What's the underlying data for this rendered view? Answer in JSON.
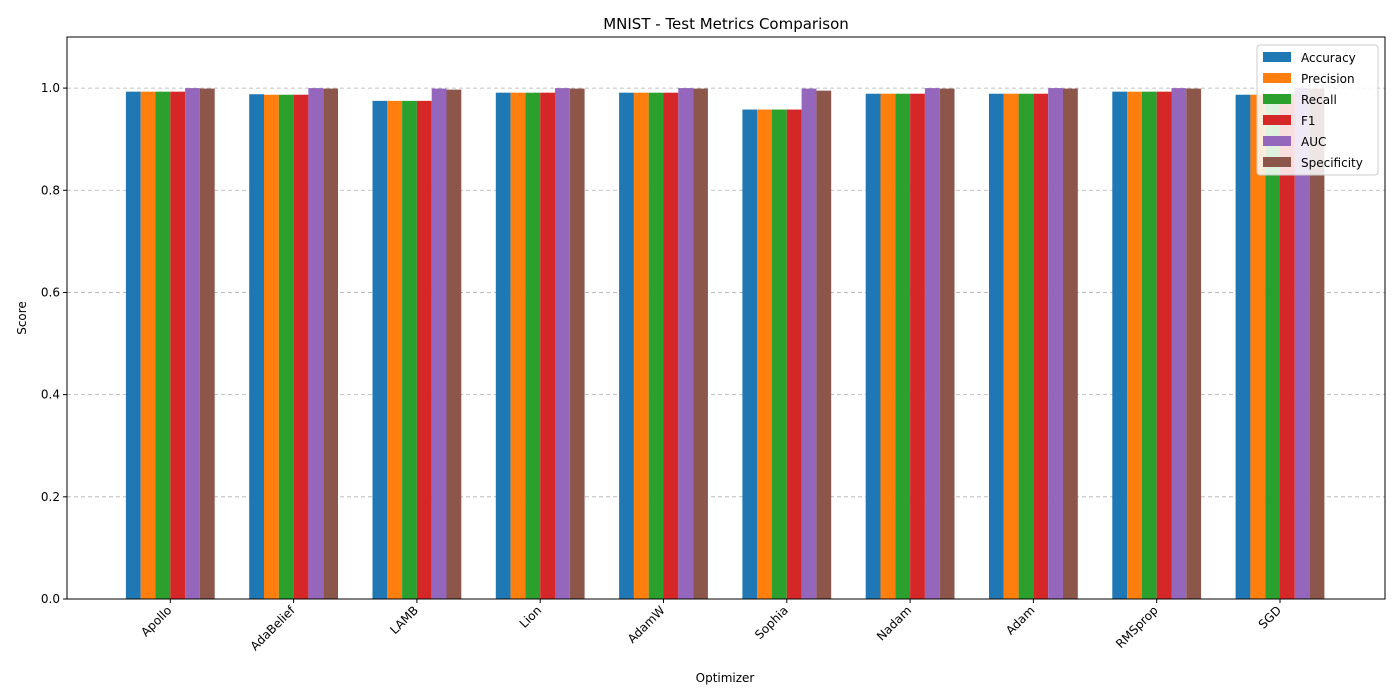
{
  "chart_data": {
    "type": "bar",
    "title": "MNIST - Test Metrics Comparison",
    "xlabel": "Optimizer",
    "ylabel": "Score",
    "ylim": [
      0,
      1.1
    ],
    "yticks": [
      "0.0",
      "0.2",
      "0.4",
      "0.6",
      "0.8",
      "1.0"
    ],
    "grid": "y-dashed",
    "legend_position": "top-right",
    "categories": [
      "Apollo",
      "AdaBelief",
      "LAMB",
      "Lion",
      "AdamW",
      "Sophia",
      "Nadam",
      "Adam",
      "RMSprop",
      "SGD"
    ],
    "series": [
      {
        "name": "Accuracy",
        "color": "#1f77b4",
        "values": [
          0.993,
          0.988,
          0.975,
          0.991,
          0.991,
          0.958,
          0.989,
          0.989,
          0.993,
          0.987
        ]
      },
      {
        "name": "Precision",
        "color": "#ff7f0e",
        "values": [
          0.993,
          0.987,
          0.975,
          0.991,
          0.991,
          0.958,
          0.989,
          0.989,
          0.993,
          0.987
        ]
      },
      {
        "name": "Recall",
        "color": "#2ca02c",
        "values": [
          0.993,
          0.987,
          0.975,
          0.991,
          0.991,
          0.958,
          0.989,
          0.989,
          0.993,
          0.987
        ]
      },
      {
        "name": "F1",
        "color": "#d62728",
        "values": [
          0.993,
          0.987,
          0.975,
          0.991,
          0.991,
          0.958,
          0.989,
          0.989,
          0.993,
          0.987
        ]
      },
      {
        "name": "AUC",
        "color": "#9467bd",
        "values": [
          1.0,
          1.0,
          0.999,
          1.0,
          1.0,
          0.999,
          1.0,
          1.0,
          1.0,
          1.0
        ]
      },
      {
        "name": "Specificity",
        "color": "#8c564b",
        "values": [
          0.999,
          0.999,
          0.997,
          0.999,
          0.999,
          0.995,
          0.999,
          0.999,
          0.999,
          0.999
        ]
      }
    ]
  }
}
